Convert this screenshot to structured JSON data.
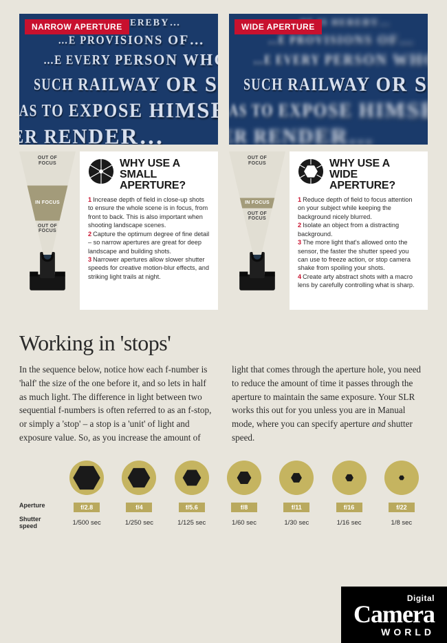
{
  "colors": {
    "page_bg": "#e8e5dc",
    "red": "#c8112e",
    "photo_bg": "#1a3a6a",
    "photo_text": "#d8e0ee",
    "focus_band": "#a39b7a",
    "gold": "#c5b460",
    "ap_tag": "#b9a95e",
    "black": "#000000",
    "white": "#ffffff",
    "body_text": "#2b2b2b"
  },
  "narrow": {
    "tag": "NARROW APERTURE",
    "photo_lines": [
      "…HE IS HEREBY…",
      "…E PROVISIONS OF…",
      "…E EVERY PERSON WHO TRES…",
      "SUCH RAILWAY OR STATION IN…",
      "AS TO EXPOSE HIMSELF TO…",
      "NCER RENDER…"
    ],
    "dof": {
      "out_top": "OUT OF\nFOCUS",
      "in": "IN FOCUS",
      "out_bottom": "OUT OF\nFOCUS",
      "band_top_pct": 33,
      "band_height_pct": 34
    },
    "card": {
      "title": "WHY USE A SMALL APERTURE?",
      "aperture_hole_ratio": 0.18,
      "items": [
        "Increase depth of field in close-up shots to ensure the whole scene is in focus, from front to back. This is also important when shooting landscape scenes.",
        "Capture the optimum degree of fine detail – so narrow apertures are great for deep landscape and building shots.",
        "Narrower apertures allow slower shutter speeds for creative motion-blur effects, and striking light trails at night."
      ]
    }
  },
  "wide": {
    "tag": "WIDE APERTURE",
    "photo_lines": [
      "…HE IS HEREBY…",
      "…E PROVISIONS OF…",
      "…E EVERY PERSON WHO TRES…",
      "SUCH RAILWAY OR STATION IN…",
      "AS TO EXPOSE HIMSELF TO…",
      "NCER RENDER…"
    ],
    "dof": {
      "out_top": "OUT OF\nFOCUS",
      "in": "IN FOCUS",
      "out_bottom": "OUT OF\nFOCUS",
      "band_top_pct": 45,
      "band_height_pct": 10
    },
    "card": {
      "title": "WHY USE A WIDE APERTURE?",
      "aperture_hole_ratio": 0.55,
      "items": [
        "Reduce depth of field to focus attention on your subject while keeping the background nicely blurred.",
        "Isolate an object from a distracting background.",
        "The more light that's allowed onto the sensor, the faster the shutter speed you can use to freeze action, or stop camera shake from spoiling your shots.",
        "Create arty abstract shots with a macro lens by carefully controlling what is sharp."
      ]
    }
  },
  "stops": {
    "title": "Working in 'stops'",
    "body_html": "In the sequence below, notice how each f-number is 'half' the size of the one before it, and so lets in half as much light. The difference in light between two sequential f-numbers is often referred to as an f-stop, or simply a 'stop' – a stop is a 'unit' of light and exposure value. So, as you increase the amount of light that comes through the aperture hole, you need to reduce the amount of time it passes through the aperture to maintain the same exposure. Your SLR works this out for you unless you are in Manual mode, where you can specify aperture <em>and</em> shutter speed.",
    "labels": {
      "aperture": "Aperture",
      "shutter": "Shutter\nspeed"
    },
    "sequence": [
      {
        "f": "f/2.8",
        "shutter": "1/500 sec",
        "hole": 0.8
      },
      {
        "f": "f/4",
        "shutter": "1/250 sec",
        "hole": 0.66
      },
      {
        "f": "f/5.6",
        "shutter": "1/125 sec",
        "hole": 0.54
      },
      {
        "f": "f/8",
        "shutter": "1/60 sec",
        "hole": 0.42
      },
      {
        "f": "f/11",
        "shutter": "1/30 sec",
        "hole": 0.32
      },
      {
        "f": "f/16",
        "shutter": "1/16 sec",
        "hole": 0.24
      },
      {
        "f": "f/22",
        "shutter": "1/8 sec",
        "hole": 0.16
      }
    ]
  },
  "logo": {
    "small": "Digital",
    "big": "Camera",
    "world": "WORLD"
  }
}
